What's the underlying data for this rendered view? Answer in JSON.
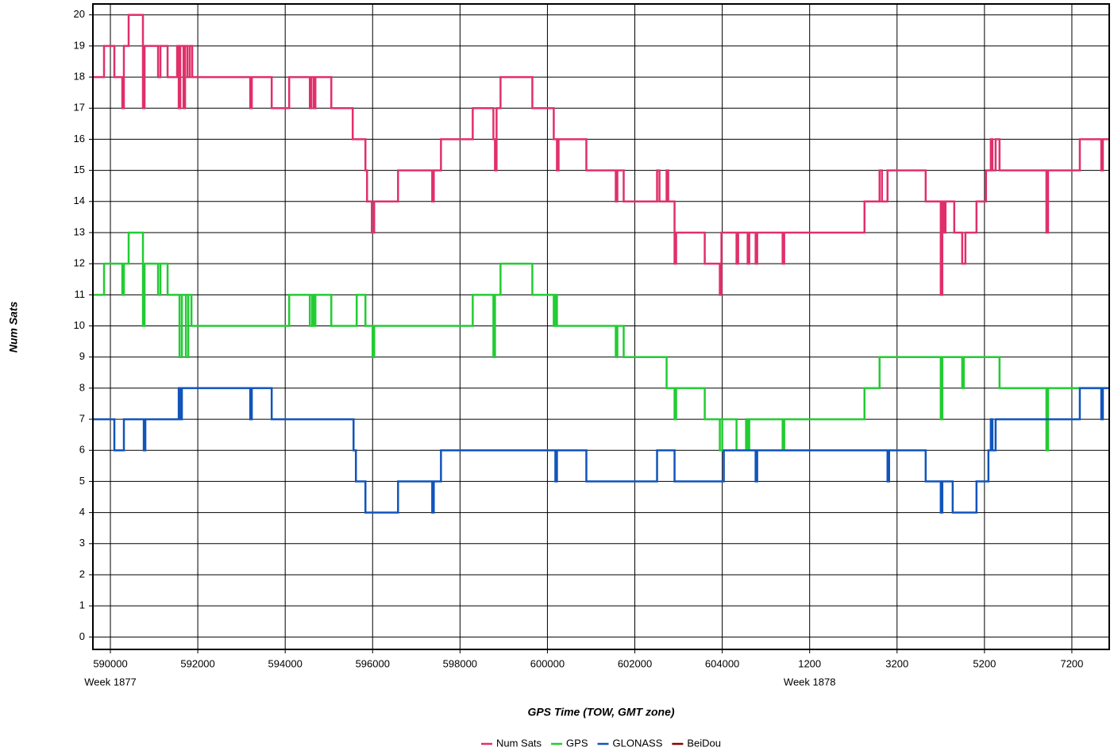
{
  "chart_data": {
    "type": "line",
    "drawstyle": "steps-post",
    "x_label": "GPS Time (TOW, GMT zone)",
    "y_label": "Num Sats",
    "xlim": [
      589600,
      612855
    ],
    "ylim": [
      -0.4,
      20.35
    ],
    "xticks": [
      590000,
      592000,
      594000,
      596000,
      598000,
      600000,
      602000,
      604000,
      {
        "value": 606000,
        "label": "1200"
      },
      {
        "value": 608000,
        "label": "3200"
      },
      {
        "value": 610000,
        "label": "5200"
      },
      {
        "value": 612000,
        "label": "7200"
      }
    ],
    "yticks": [
      0,
      1,
      2,
      3,
      4,
      5,
      6,
      7,
      8,
      9,
      10,
      11,
      12,
      13,
      14,
      15,
      16,
      17,
      18,
      19,
      20
    ],
    "grid": true,
    "legend": "bottom",
    "annotations": [
      {
        "text": "Week 1877",
        "x": 590000
      },
      {
        "text": "Week 1878",
        "x": 606000
      }
    ],
    "series": [
      {
        "name": "Num Sats",
        "color": "#e0306a",
        "x": [
          589600,
          589855,
          590091,
          590273,
          590309,
          590418,
          590745,
          590782,
          591091,
          591145,
          591309,
          591527,
          591564,
          591600,
          591673,
          591709,
          591764,
          591818,
          591873,
          593200,
          593236,
          593691,
          594091,
          594564,
          594600,
          594655,
          594691,
          595055,
          595545,
          595836,
          595873,
          595982,
          596036,
          596582,
          597364,
          597400,
          597564,
          598291,
          598764,
          598800,
          598836,
          598927,
          599655,
          600145,
          600218,
          600255,
          600891,
          601564,
          601600,
          601745,
          602509,
          602564,
          602727,
          602764,
          602909,
          602945,
          603600,
          603945,
          603982,
          604327,
          604364,
          604582,
          604618,
          604764,
          604800,
          605382,
          605418,
          607255,
          607600,
          607655,
          607782,
          608655,
          609000,
          609036,
          609073,
          609109,
          609309,
          609491,
          609564,
          609818,
          610036,
          610145,
          610182,
          610255,
          610345,
          611418,
          611455,
          612182,
          612673,
          612709,
          612855
        ],
        "values": [
          18,
          19,
          18,
          17,
          19,
          20,
          17,
          19,
          18,
          19,
          18,
          19,
          17,
          19,
          17,
          19,
          18,
          19,
          18,
          17,
          18,
          17,
          18,
          17,
          18,
          17,
          18,
          17,
          16,
          15,
          14,
          13,
          14,
          15,
          14,
          15,
          16,
          17,
          16,
          15,
          17,
          18,
          17,
          16,
          15,
          16,
          15,
          14,
          15,
          14,
          15,
          14,
          15,
          14,
          12,
          13,
          12,
          11,
          13,
          12,
          13,
          12,
          13,
          12,
          13,
          12,
          13,
          14,
          15,
          14,
          15,
          14,
          11,
          14,
          13,
          14,
          13,
          12,
          13,
          14,
          15,
          16,
          15,
          16,
          15,
          13,
          15,
          16,
          15,
          16,
          16
        ]
      },
      {
        "name": "GPS",
        "color": "#22cc33",
        "x": [
          589600,
          589855,
          590273,
          590309,
          590418,
          590745,
          590782,
          591091,
          591145,
          591309,
          591582,
          591636,
          591727,
          591782,
          591855,
          594091,
          594564,
          594618,
          594655,
          594691,
          595055,
          595636,
          595836,
          596000,
          596036,
          598291,
          598764,
          598800,
          598927,
          599655,
          600145,
          600182,
          600218,
          601564,
          601600,
          601745,
          602727,
          602909,
          602945,
          603600,
          603945,
          604000,
          604327,
          604545,
          604582,
          604618,
          605382,
          605418,
          607255,
          607600,
          609000,
          609036,
          609491,
          609527,
          610345,
          611418,
          611455,
          612855
        ],
        "values": [
          11,
          12,
          11,
          12,
          13,
          10,
          12,
          11,
          12,
          11,
          9,
          11,
          9,
          11,
          10,
          11,
          10,
          11,
          10,
          11,
          10,
          11,
          10,
          9,
          10,
          11,
          9,
          11,
          12,
          11,
          10,
          11,
          10,
          9,
          10,
          9,
          8,
          7,
          8,
          7,
          6,
          7,
          6,
          7,
          6,
          7,
          6,
          7,
          8,
          9,
          7,
          9,
          8,
          9,
          8,
          6,
          8,
          8
        ]
      },
      {
        "name": "GLONASS",
        "color": "#1155bb",
        "x": [
          589600,
          590091,
          590309,
          590764,
          590800,
          591564,
          591600,
          591636,
          593200,
          593236,
          593691,
          595564,
          595618,
          595836,
          596582,
          597364,
          597400,
          597564,
          600182,
          600218,
          600891,
          602509,
          602909,
          604036,
          604764,
          604800,
          607782,
          607818,
          608655,
          609000,
          609036,
          609273,
          609818,
          610091,
          610145,
          610182,
          610255,
          612182,
          612673,
          612709,
          612855
        ],
        "values": [
          7,
          6,
          7,
          6,
          7,
          8,
          7,
          8,
          7,
          8,
          7,
          6,
          5,
          4,
          5,
          4,
          5,
          6,
          5,
          6,
          5,
          6,
          5,
          6,
          5,
          6,
          5,
          6,
          5,
          4,
          5,
          4,
          5,
          6,
          7,
          6,
          7,
          8,
          7,
          8,
          8
        ]
      },
      {
        "name": "BeiDou",
        "color": "#8b0000",
        "x": [],
        "values": []
      }
    ]
  }
}
